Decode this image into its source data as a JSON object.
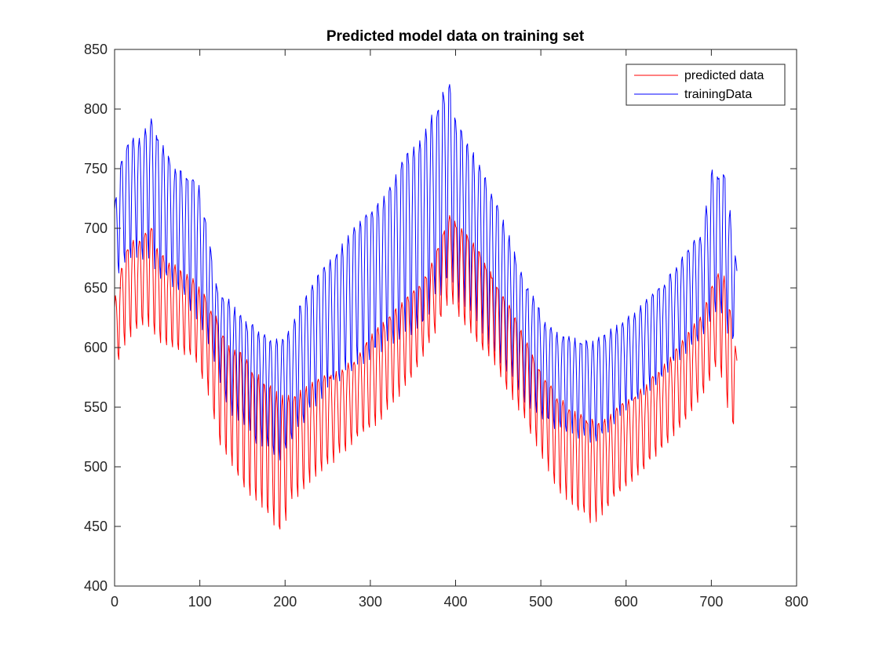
{
  "chart_data": {
    "type": "line",
    "title": "Predicted model data on training set",
    "xlabel": "",
    "ylabel": "",
    "xlim": [
      0,
      800
    ],
    "ylim": [
      400,
      850
    ],
    "xticks": [
      "0",
      "100",
      "200",
      "300",
      "400",
      "500",
      "600",
      "700",
      "800"
    ],
    "yticks": [
      "400",
      "450",
      "500",
      "550",
      "600",
      "650",
      "700",
      "750",
      "800",
      "850"
    ],
    "grid": false,
    "legend_position": "top-right",
    "n_points": 731,
    "period": 7,
    "series": [
      {
        "name": "predicted data",
        "color": "#ff0000",
        "envelope_x": [
          0,
          10,
          20,
          30,
          45,
          50,
          70,
          90,
          100,
          110,
          120,
          135,
          150,
          165,
          180,
          195,
          205,
          220,
          240,
          260,
          280,
          300,
          320,
          340,
          360,
          375,
          385,
          395,
          400,
          420,
          440,
          460,
          480,
          500,
          520,
          540,
          560,
          575,
          590,
          610,
          630,
          650,
          670,
          690,
          700,
          710,
          715,
          725,
          730
        ],
        "envelope_high": [
          640,
          675,
          690,
          690,
          705,
          685,
          670,
          660,
          650,
          640,
          625,
          600,
          595,
          580,
          570,
          560,
          560,
          565,
          575,
          580,
          590,
          610,
          625,
          640,
          655,
          675,
          695,
          718,
          705,
          690,
          665,
          640,
          610,
          580,
          560,
          548,
          540,
          540,
          550,
          560,
          575,
          590,
          610,
          630,
          650,
          665,
          660,
          620,
          590
        ],
        "envelope_low": [
          580,
          600,
          610,
          620,
          615,
          605,
          600,
          590,
          580,
          560,
          525,
          500,
          485,
          470,
          455,
          440,
          465,
          480,
          495,
          505,
          520,
          530,
          545,
          565,
          590,
          610,
          630,
          640,
          630,
          610,
          590,
          565,
          540,
          510,
          480,
          465,
          450,
          462,
          475,
          490,
          505,
          520,
          540,
          560,
          575,
          585,
          560,
          525,
          580
        ]
      },
      {
        "name": "trainingData",
        "color": "#0000ff",
        "envelope_x": [
          0,
          10,
          20,
          30,
          45,
          50,
          70,
          90,
          100,
          110,
          120,
          135,
          150,
          165,
          180,
          195,
          205,
          220,
          240,
          260,
          280,
          300,
          320,
          340,
          360,
          375,
          385,
          395,
          400,
          420,
          440,
          460,
          480,
          500,
          520,
          540,
          560,
          575,
          590,
          610,
          630,
          650,
          670,
          690,
          700,
          710,
          715,
          725,
          730
        ],
        "envelope_high": [
          720,
          765,
          780,
          775,
          800,
          780,
          750,
          745,
          735,
          700,
          650,
          640,
          625,
          618,
          612,
          605,
          615,
          640,
          662,
          680,
          700,
          715,
          730,
          760,
          775,
          800,
          815,
          822,
          790,
          765,
          735,
          700,
          660,
          630,
          612,
          608,
          605,
          612,
          620,
          630,
          645,
          660,
          680,
          700,
          750,
          745,
          750,
          700,
          665
        ],
        "envelope_low": [
          655,
          670,
          675,
          675,
          670,
          660,
          650,
          630,
          620,
          600,
          580,
          545,
          535,
          520,
          515,
          505,
          520,
          535,
          555,
          570,
          580,
          590,
          600,
          610,
          610,
          640,
          640,
          660,
          640,
          630,
          600,
          580,
          555,
          540,
          530,
          525,
          520,
          525,
          540,
          555,
          565,
          580,
          595,
          610,
          625,
          635,
          620,
          600,
          650
        ]
      }
    ]
  }
}
